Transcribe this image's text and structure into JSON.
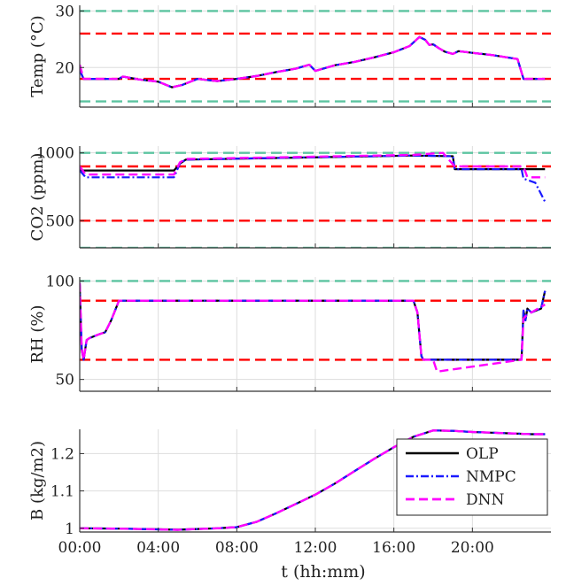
{
  "figure": {
    "xlabel": "t (hh:mm)",
    "xticks": [
      "00:00",
      "04:00",
      "08:00",
      "12:00",
      "16:00",
      "20:00"
    ],
    "xtick_hours": [
      0,
      4,
      8,
      12,
      16,
      20
    ],
    "legend": [
      "OLP",
      "NMPC",
      "DNN"
    ],
    "colors": {
      "OLP": "#000000",
      "NMPC": "#1a1aff",
      "DNN": "#ff00ff",
      "bound_outer": "#5cc4a0",
      "bound_inner": "#ff0000",
      "grid": "#dddddd"
    }
  },
  "chart_data": [
    {
      "type": "line",
      "ylabel": "Temp (°C)",
      "ylim": [
        13,
        31
      ],
      "yticks": [
        20,
        30
      ],
      "grid": true,
      "hlines": {
        "outer": [
          14,
          30
        ],
        "inner": [
          18,
          26
        ]
      },
      "series": [
        {
          "name": "OLP",
          "x": [
            0,
            0.2,
            0.4,
            2,
            2.2,
            3,
            4,
            4.7,
            5.2,
            6,
            7,
            8,
            9,
            10,
            11,
            11.7,
            12,
            12.2,
            13,
            14,
            15,
            16,
            16.8,
            17.3,
            17.6,
            17.8,
            18,
            18.3,
            18.6,
            19,
            19.3,
            20,
            21,
            22.3,
            22.6,
            23,
            23.7
          ],
          "y": [
            19.5,
            18,
            18,
            18,
            18.4,
            17.9,
            17.5,
            16.5,
            16.9,
            18,
            17.6,
            18,
            18.5,
            19.2,
            19.8,
            20.5,
            19.4,
            19.6,
            20.4,
            21,
            21.8,
            22.7,
            23.8,
            25.4,
            24.9,
            24,
            24.1,
            23.4,
            22.8,
            22.4,
            22.9,
            22.6,
            22.2,
            21.5,
            18,
            18,
            18
          ]
        },
        {
          "name": "NMPC",
          "x": [
            0,
            0.2,
            0.4,
            2,
            2.2,
            3,
            4,
            4.7,
            5.2,
            6,
            7,
            8,
            9,
            10,
            11,
            11.7,
            12,
            12.2,
            13,
            14,
            15,
            16,
            16.8,
            17.3,
            17.6,
            17.8,
            18,
            18.3,
            18.6,
            19,
            19.3,
            20,
            21,
            22.3,
            22.6,
            23,
            23.7
          ],
          "y": [
            19.5,
            18,
            18,
            18,
            18.4,
            17.9,
            17.5,
            16.5,
            16.9,
            18,
            17.6,
            18,
            18.5,
            19.2,
            19.8,
            20.5,
            19.4,
            19.6,
            20.4,
            21,
            21.8,
            22.7,
            23.8,
            25.4,
            24.9,
            24,
            24.1,
            23.4,
            22.8,
            22.4,
            22.9,
            22.6,
            22.2,
            21.5,
            18,
            18,
            18
          ]
        },
        {
          "name": "DNN",
          "x": [
            0,
            0.2,
            0.4,
            2,
            2.2,
            3,
            4,
            4.7,
            5.2,
            6,
            7,
            8,
            9,
            10,
            11,
            11.7,
            12,
            12.2,
            13,
            14,
            15,
            16,
            16.8,
            17.3,
            17.6,
            17.8,
            18,
            18.3,
            18.6,
            19,
            19.3,
            20,
            21,
            22.3,
            22.6,
            23,
            23.7
          ],
          "y": [
            20.5,
            18,
            18,
            18,
            18.4,
            17.9,
            17.5,
            16.5,
            16.9,
            18,
            17.6,
            18,
            18.5,
            19.2,
            19.8,
            20.5,
            19.4,
            19.6,
            20.4,
            21,
            21.8,
            22.7,
            23.8,
            25.4,
            24.9,
            24,
            24.1,
            23.4,
            22.8,
            22.4,
            22.9,
            22.6,
            22.2,
            21.5,
            18,
            18,
            18
          ]
        }
      ]
    },
    {
      "type": "line",
      "ylabel": "CO2 (ppm)",
      "ylim": [
        300,
        1050
      ],
      "yticks": [
        500,
        1000
      ],
      "grid": true,
      "hlines": {
        "outer": [
          300,
          1000
        ],
        "inner": [
          500,
          900
        ]
      },
      "series": [
        {
          "name": "OLP",
          "x": [
            0,
            4.8,
            5.1,
            5.4,
            17,
            19,
            19.1,
            22.5,
            22.6,
            23.7
          ],
          "y": [
            870,
            870,
            920,
            950,
            980,
            975,
            880,
            880,
            880,
            880
          ]
        },
        {
          "name": "NMPC",
          "x": [
            0,
            0.3,
            4.8,
            5.1,
            5.4,
            17,
            19,
            19.1,
            22.5,
            22.6,
            23.2,
            23.7
          ],
          "y": [
            870,
            820,
            820,
            920,
            950,
            980,
            975,
            880,
            880,
            810,
            780,
            640
          ]
        },
        {
          "name": "DNN",
          "x": [
            0,
            0.3,
            4.8,
            5.1,
            5.4,
            17,
            18.5,
            19.1,
            22.6,
            22.8,
            23.7
          ],
          "y": [
            900,
            840,
            840,
            930,
            955,
            985,
            1000,
            900,
            900,
            820,
            820
          ]
        }
      ]
    },
    {
      "type": "line",
      "ylabel": "RH (%)",
      "ylim": [
        44,
        102
      ],
      "yticks": [
        50,
        100
      ],
      "grid": true,
      "hlines": {
        "outer": [
          100
        ],
        "inner": [
          60,
          90
        ]
      },
      "series": [
        {
          "name": "OLP",
          "x": [
            0,
            0.1,
            0.2,
            0.35,
            0.5,
            1,
            1.3,
            1.6,
            2,
            5,
            10,
            17,
            17.2,
            17.4,
            17.5,
            18,
            22.5,
            22.6,
            22.7,
            22.8,
            23,
            23.5,
            23.7
          ],
          "y": [
            98,
            65,
            60,
            70,
            71,
            73,
            74,
            80,
            90,
            90,
            90,
            90,
            84,
            62,
            60,
            60,
            60,
            85,
            80,
            86,
            84,
            86,
            95
          ]
        },
        {
          "name": "NMPC",
          "x": [
            0,
            0.1,
            0.2,
            0.35,
            0.5,
            1,
            1.3,
            1.6,
            2,
            5,
            10,
            17,
            17.2,
            17.4,
            17.5,
            18,
            22.5,
            22.6,
            22.7,
            22.8,
            23,
            23.5,
            23.7
          ],
          "y": [
            99,
            66,
            60,
            70,
            71,
            73,
            74,
            80,
            90,
            90,
            90,
            90,
            84,
            62,
            60,
            60,
            60,
            85,
            80,
            86,
            84,
            86,
            95
          ]
        },
        {
          "name": "DNN",
          "x": [
            0,
            0.1,
            0.2,
            0.35,
            0.5,
            1,
            1.3,
            1.6,
            2,
            5,
            10,
            17,
            17.2,
            17.4,
            17.5,
            18,
            18.2,
            22.5,
            22.6,
            22.8,
            23,
            23.7
          ],
          "y": [
            99,
            66,
            60,
            70,
            71,
            73,
            74,
            80,
            90,
            90,
            90,
            90,
            84,
            62,
            60,
            60,
            54,
            60,
            81,
            83,
            84,
            88
          ]
        }
      ]
    },
    {
      "type": "line",
      "ylabel": "B (kg/m2)",
      "ylim": [
        0.99,
        1.265
      ],
      "yticks": [
        1,
        1.1,
        1.2
      ],
      "grid": true,
      "legend_position": "bottom-right",
      "series": [
        {
          "name": "OLP",
          "x": [
            0,
            2,
            4,
            5,
            6,
            7,
            8,
            9,
            10,
            11,
            12,
            13,
            14,
            15,
            16,
            17,
            18,
            19,
            20,
            21,
            22,
            23,
            23.7
          ],
          "y": [
            1,
            0.999,
            0.997,
            0.996,
            0.998,
            1,
            1.003,
            1.017,
            1.04,
            1.065,
            1.09,
            1.12,
            1.153,
            1.186,
            1.217,
            1.245,
            1.262,
            1.261,
            1.258,
            1.256,
            1.254,
            1.252,
            1.252
          ]
        },
        {
          "name": "NMPC",
          "x": [
            0,
            2,
            4,
            5,
            6,
            7,
            8,
            9,
            10,
            11,
            12,
            13,
            14,
            15,
            16,
            17,
            18,
            19,
            20,
            21,
            22,
            23,
            23.7
          ],
          "y": [
            1,
            0.999,
            0.997,
            0.996,
            0.998,
            1,
            1.003,
            1.017,
            1.04,
            1.065,
            1.09,
            1.12,
            1.153,
            1.186,
            1.217,
            1.245,
            1.262,
            1.261,
            1.258,
            1.256,
            1.254,
            1.252,
            1.252
          ]
        },
        {
          "name": "DNN",
          "x": [
            0,
            2,
            4,
            5,
            6,
            7,
            8,
            9,
            10,
            11,
            12,
            13,
            14,
            15,
            16,
            17,
            18,
            19,
            20,
            21,
            22,
            23,
            23.7
          ],
          "y": [
            1,
            0.999,
            0.997,
            0.996,
            0.998,
            1,
            1.003,
            1.017,
            1.04,
            1.065,
            1.09,
            1.12,
            1.153,
            1.186,
            1.217,
            1.245,
            1.262,
            1.261,
            1.258,
            1.256,
            1.254,
            1.252,
            1.252
          ]
        }
      ]
    }
  ]
}
